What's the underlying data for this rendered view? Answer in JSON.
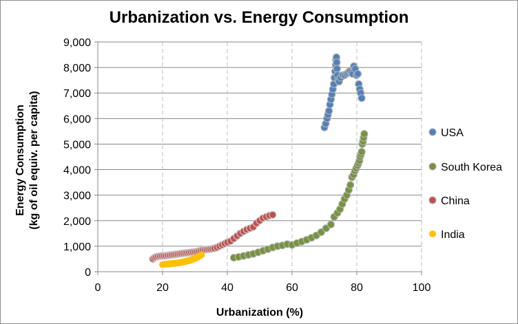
{
  "chart_data": {
    "type": "scatter",
    "title": "Urbanization vs. Energy Consumption",
    "xlabel": "Urbanization (%)",
    "ylabel_line1": "Energy Consumption",
    "ylabel_line2": "(kg of oil equiv. per capita)",
    "xlim": [
      0,
      100
    ],
    "ylim": [
      0,
      9000
    ],
    "xticks": [
      0,
      20,
      40,
      60,
      80,
      100
    ],
    "xtick_labels": [
      "0",
      "20",
      "40",
      "60",
      "80",
      "100"
    ],
    "yticks": [
      0,
      1000,
      2000,
      3000,
      4000,
      5000,
      6000,
      7000,
      8000,
      9000
    ],
    "ytick_labels": [
      "0",
      "1,000",
      "2,000",
      "3,000",
      "4,000",
      "5,000",
      "6,000",
      "7,000",
      "8,000",
      "9,000"
    ],
    "grid": {
      "horizontal": "solid",
      "vertical": "dashed"
    },
    "legend_position": "right",
    "series": [
      {
        "name": "USA",
        "color": "#4f81bd",
        "x": [
          70.0,
          70.4,
          70.8,
          71.1,
          71.4,
          71.7,
          72.0,
          72.3,
          72.6,
          72.9,
          73.1,
          73.3,
          73.5,
          73.6,
          73.7,
          73.8,
          73.9,
          74.0,
          74.2,
          74.5,
          75.0,
          75.6,
          76.2,
          76.8,
          77.3,
          77.8,
          78.3,
          78.7,
          79.1,
          79.5,
          79.9,
          80.3,
          80.6,
          80.9,
          81.2,
          81.5
        ],
        "y": [
          5650,
          5800,
          6000,
          6150,
          6300,
          6550,
          6750,
          6950,
          7150,
          7350,
          7600,
          7850,
          8100,
          8300,
          8400,
          8200,
          7950,
          7700,
          7500,
          7450,
          7600,
          7700,
          7700,
          7750,
          7800,
          7850,
          7800,
          7750,
          8050,
          7950,
          7700,
          7750,
          7350,
          7150,
          7000,
          6800
        ]
      },
      {
        "name": "South Korea",
        "color": "#77933c",
        "x": [
          42.0,
          43.5,
          45.0,
          46.5,
          48.0,
          49.5,
          51.0,
          52.5,
          54.0,
          55.5,
          57.0,
          58.5,
          60.0,
          61.5,
          63.0,
          64.5,
          66.0,
          67.5,
          69.0,
          70.5,
          72.0,
          73.0,
          74.0,
          74.8,
          75.5,
          76.2,
          76.9,
          77.5,
          78.0,
          78.5,
          79.0,
          79.4,
          79.8,
          80.2,
          80.5,
          80.8,
          81.0,
          81.3,
          81.5,
          81.7,
          81.9,
          82.1,
          82.3
        ],
        "y": [
          550,
          580,
          620,
          660,
          700,
          760,
          820,
          880,
          950,
          1000,
          1030,
          1080,
          1050,
          1120,
          1180,
          1250,
          1330,
          1420,
          1550,
          1700,
          1850,
          2150,
          2300,
          2450,
          2650,
          2850,
          3000,
          3200,
          3400,
          3700,
          3800,
          3950,
          4050,
          4150,
          4250,
          4350,
          4500,
          4600,
          4700,
          5000,
          5100,
          5250,
          5400
        ]
      },
      {
        "name": "China",
        "color": "#c0504d",
        "x": [
          17.0,
          17.5,
          18.0,
          18.6,
          19.2,
          19.8,
          20.4,
          21.0,
          21.6,
          22.2,
          22.8,
          23.4,
          24.0,
          24.6,
          25.2,
          25.8,
          26.4,
          27.0,
          27.6,
          28.2,
          28.8,
          29.4,
          30.0,
          30.6,
          31.2,
          31.8,
          32.4,
          33.0,
          33.6,
          34.2,
          34.8,
          35.4,
          36.0,
          36.8,
          37.6,
          38.4,
          39.2,
          40.0,
          41.0,
          42.0,
          43.0,
          44.0,
          45.0,
          46.0,
          47.0,
          48.0,
          49.0,
          50.0,
          51.0,
          52.0,
          53.0,
          54.0
        ],
        "y": [
          500,
          550,
          580,
          600,
          610,
          620,
          620,
          630,
          640,
          650,
          660,
          670,
          680,
          690,
          700,
          710,
          720,
          730,
          740,
          750,
          760,
          770,
          780,
          790,
          810,
          830,
          850,
          860,
          870,
          880,
          890,
          900,
          920,
          950,
          1000,
          1050,
          1100,
          1150,
          1200,
          1300,
          1400,
          1500,
          1580,
          1650,
          1700,
          1750,
          1900,
          2000,
          2100,
          2150,
          2200,
          2230
        ]
      },
      {
        "name": "India",
        "color": "#ffc000",
        "x": [
          20.0,
          20.6,
          21.2,
          21.8,
          22.3,
          22.8,
          23.3,
          23.8,
          24.3,
          24.8,
          25.2,
          25.6,
          26.0,
          26.4,
          26.8,
          27.2,
          27.6,
          28.0,
          28.4,
          28.8,
          29.2,
          29.6,
          30.0,
          30.4,
          30.8,
          31.2,
          31.6,
          32.0
        ],
        "y": [
          280,
          290,
          300,
          305,
          310,
          320,
          325,
          330,
          340,
          350,
          355,
          365,
          375,
          385,
          395,
          405,
          415,
          430,
          445,
          460,
          480,
          500,
          520,
          540,
          570,
          600,
          630,
          660
        ]
      }
    ]
  }
}
